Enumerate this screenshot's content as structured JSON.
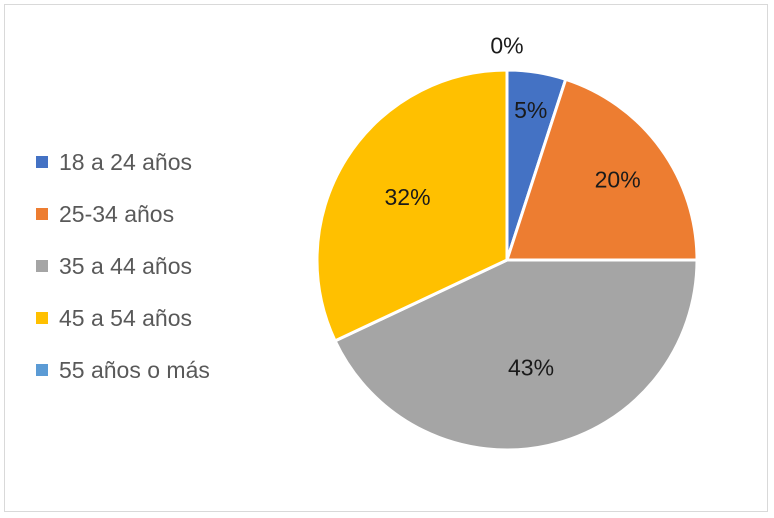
{
  "chart_data": {
    "type": "pie",
    "title": "",
    "categories": [
      "18 a 24 años",
      "25-34 años",
      "35 a 44 años",
      "45 a 54 años",
      "55 años o más"
    ],
    "values": [
      5,
      20,
      43,
      32,
      0
    ],
    "data_labels": [
      "5%",
      "20%",
      "43%",
      "32%",
      "0%"
    ],
    "colors": [
      "#4472C4",
      "#ED7D31",
      "#A5A5A5",
      "#FFC000",
      "#5B9BD5"
    ],
    "legend_position": "left",
    "start_angle": "top",
    "direction": "clockwise"
  }
}
